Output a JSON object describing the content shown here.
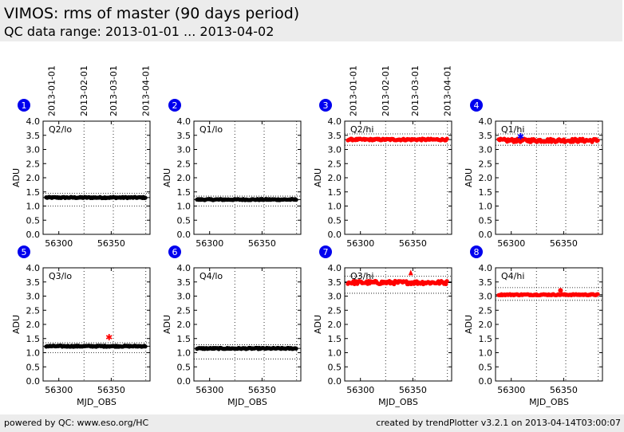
{
  "header": {
    "title": "VIMOS: rms of master (90 days period)",
    "subtitle": "QC data range: 2013-01-01 ... 2013-04-02"
  },
  "footer": {
    "left": "powered by QC: www.eso.org/HC",
    "right": "created by trendPlotter v3.2.1 on 2013-04-14T03:00:07"
  },
  "chart_data": [
    {
      "type": "scatter",
      "panel_number": "1",
      "label": "Q2/lo",
      "ylabel": "ADU",
      "xlabel": "",
      "ylim": [
        0,
        4
      ],
      "xlim": [
        56285,
        56387
      ],
      "x_ticks": [
        56300,
        56350
      ],
      "y_ticks": [
        0,
        0.5,
        1,
        1.5,
        2,
        2.5,
        3,
        3.5,
        4
      ],
      "date_ticks": [
        {
          "label": "2013-01-01",
          "mjd": 56293
        },
        {
          "label": "2013-02-01",
          "mjd": 56324
        },
        {
          "label": "2013-03-01",
          "mjd": 56352
        },
        {
          "label": "2013-04-01",
          "mjd": 56383
        }
      ],
      "level": 1.3,
      "scatter": 0.02,
      "ref_line": 1.3,
      "limits": [
        1.0,
        1.45
      ],
      "color": "#000000",
      "outliers": []
    },
    {
      "type": "scatter",
      "panel_number": "2",
      "label": "Q1/lo",
      "ylabel": "ADU",
      "xlabel": "",
      "ylim": [
        0,
        4
      ],
      "xlim": [
        56285,
        56387
      ],
      "x_ticks": [
        56300,
        56350
      ],
      "y_ticks": [
        0,
        0.5,
        1,
        1.5,
        2,
        2.5,
        3,
        3.5,
        4
      ],
      "level": 1.23,
      "scatter": 0.02,
      "ref_line": 1.23,
      "limits": [
        1.0,
        1.35
      ],
      "color": "#000000",
      "outliers": []
    },
    {
      "type": "scatter",
      "panel_number": "3",
      "label": "Q2/hi",
      "ylabel": "ADU",
      "xlabel": "",
      "ylim": [
        0,
        4
      ],
      "xlim": [
        56285,
        56387
      ],
      "x_ticks": [
        56300,
        56350
      ],
      "y_ticks": [
        0,
        0.5,
        1,
        1.5,
        2,
        2.5,
        3,
        3.5,
        4
      ],
      "date_ticks": [
        {
          "label": "2013-01-01",
          "mjd": 56293
        },
        {
          "label": "2013-02-01",
          "mjd": 56324
        },
        {
          "label": "2013-03-01",
          "mjd": 56352
        },
        {
          "label": "2013-04-01",
          "mjd": 56383
        }
      ],
      "level": 3.35,
      "scatter": 0.03,
      "ref_line": 3.35,
      "limits": [
        3.15,
        3.55
      ],
      "color": "#ff0000",
      "outliers": []
    },
    {
      "type": "scatter",
      "panel_number": "4",
      "label": "Q1/hi",
      "ylabel": "ADU",
      "xlabel": "",
      "ylim": [
        0,
        4
      ],
      "xlim": [
        56285,
        56387
      ],
      "x_ticks": [
        56300,
        56350
      ],
      "y_ticks": [
        0,
        0.5,
        1,
        1.5,
        2,
        2.5,
        3,
        3.5,
        4
      ],
      "level": 3.32,
      "scatter": 0.06,
      "ref_line": 3.35,
      "limits": [
        3.15,
        3.55
      ],
      "color": "#ff0000",
      "outliers": [
        {
          "x": 56309,
          "y": 3.47,
          "marker": "star",
          "color": "#0000ff"
        }
      ]
    },
    {
      "type": "scatter",
      "panel_number": "5",
      "label": "Q3/lo",
      "ylabel": "ADU",
      "xlabel": "MJD_OBS",
      "ylim": [
        0,
        4
      ],
      "xlim": [
        56285,
        56387
      ],
      "x_ticks": [
        56300,
        56350
      ],
      "y_ticks": [
        0,
        0.5,
        1,
        1.5,
        2,
        2.5,
        3,
        3.5,
        4
      ],
      "level": 1.23,
      "scatter": 0.02,
      "ref_line": 1.23,
      "limits": [
        1.0,
        1.35
      ],
      "color": "#000000",
      "outliers": [
        {
          "x": 56348,
          "y": 1.55,
          "marker": "star",
          "color": "#ff0000"
        }
      ]
    },
    {
      "type": "scatter",
      "panel_number": "6",
      "label": "Q4/lo",
      "ylabel": "ADU",
      "xlabel": "MJD_OBS",
      "ylim": [
        0,
        4
      ],
      "xlim": [
        56285,
        56387
      ],
      "x_ticks": [
        56300,
        56350
      ],
      "y_ticks": [
        0,
        0.5,
        1,
        1.5,
        2,
        2.5,
        3,
        3.5,
        4
      ],
      "level": 1.15,
      "scatter": 0.02,
      "ref_line": 1.15,
      "limits": [
        0.78,
        1.28
      ],
      "color": "#000000",
      "outliers": []
    },
    {
      "type": "scatter",
      "panel_number": "7",
      "label": "Q3/hi",
      "ylabel": "ADU",
      "xlabel": "MJD_OBS",
      "ylim": [
        0,
        4
      ],
      "xlim": [
        56285,
        56387
      ],
      "x_ticks": [
        56300,
        56350
      ],
      "y_ticks": [
        0,
        0.5,
        1,
        1.5,
        2,
        2.5,
        3,
        3.5,
        4
      ],
      "level": 3.48,
      "scatter": 0.06,
      "ref_line": 3.48,
      "limits": [
        3.1,
        3.7
      ],
      "color": "#ff0000",
      "outliers": [
        {
          "x": 56348,
          "y": 3.82,
          "marker": "triangle",
          "color": "#ff0000"
        }
      ]
    },
    {
      "type": "scatter",
      "panel_number": "8",
      "label": "Q4/hi",
      "ylabel": "ADU",
      "xlabel": "MJD_OBS",
      "ylim": [
        0,
        4
      ],
      "xlim": [
        56285,
        56387
      ],
      "x_ticks": [
        56300,
        56350
      ],
      "y_ticks": [
        0,
        0.5,
        1,
        1.5,
        2,
        2.5,
        3,
        3.5,
        4
      ],
      "level": 3.05,
      "scatter": 0.02,
      "ref_line": 3.05,
      "limits": [
        2.85,
        3.3
      ],
      "color": "#ff0000",
      "outliers": [
        {
          "x": 56347,
          "y": 3.2,
          "marker": "dot",
          "color": "#ff0000"
        }
      ]
    }
  ]
}
